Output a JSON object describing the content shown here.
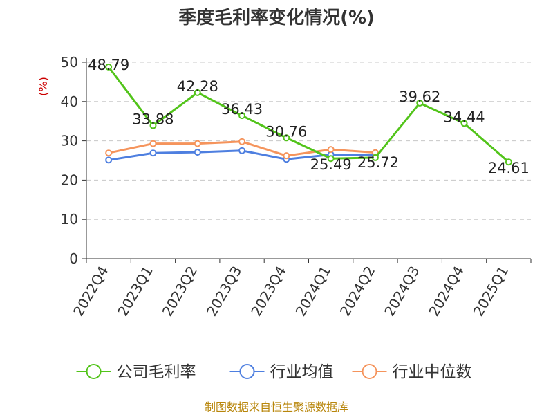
{
  "chart_data": {
    "type": "line",
    "title": "季度毛利率变化情况(%)",
    "ylabel": "(%)",
    "xlabel": "",
    "ylim": [
      0,
      50
    ],
    "yticks": [
      0,
      10,
      20,
      30,
      40,
      50
    ],
    "grid": true,
    "legend_position": "bottom",
    "categories": [
      "2022Q4",
      "2023Q1",
      "2023Q2",
      "2023Q3",
      "2023Q4",
      "2024Q1",
      "2024Q2",
      "2024Q3",
      "2024Q4",
      "2025Q1"
    ],
    "series": [
      {
        "name": "公司毛利率",
        "color": "#52c41a",
        "values": [
          48.79,
          33.88,
          42.28,
          36.43,
          30.76,
          25.49,
          25.72,
          39.62,
          34.44,
          24.61
        ],
        "labels": [
          "48.79",
          "33.88",
          "42.28",
          "36.43",
          "30.76",
          "25.49",
          "25.72",
          "39.62",
          "34.44",
          "24.61"
        ]
      },
      {
        "name": "行业均值",
        "color": "#4e7fe0",
        "values": [
          25.1,
          26.9,
          27.1,
          27.5,
          25.3,
          26.5,
          26.4,
          null,
          null,
          null
        ]
      },
      {
        "name": "行业中位数",
        "color": "#f5945c",
        "values": [
          26.9,
          29.3,
          29.3,
          29.8,
          26.2,
          27.8,
          27.0,
          null,
          null,
          null
        ]
      }
    ],
    "source": "制图数据来自恒生聚源数据库"
  }
}
